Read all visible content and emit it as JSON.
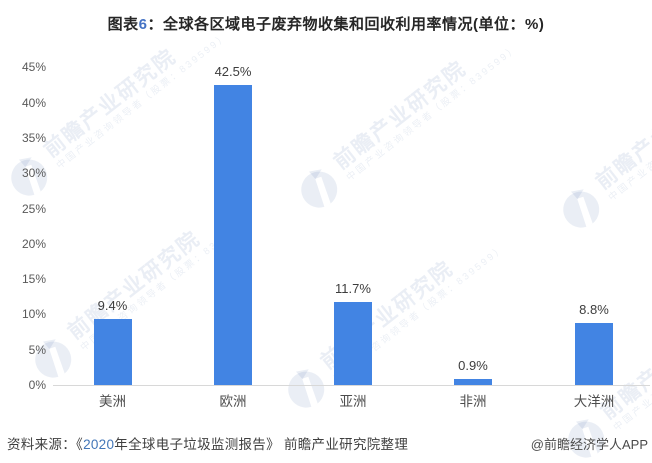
{
  "title": {
    "prefix": "图表",
    "figure_no": "6",
    "rest": "：全球各区域电子废弃物收集和回收利用率情况(单位：%)"
  },
  "chart_data": {
    "type": "bar",
    "title": "全球各区域电子废弃物收集和回收利用率情况",
    "unit": "%",
    "categories": [
      "美洲",
      "欧洲",
      "亚洲",
      "非洲",
      "大洋洲"
    ],
    "values": [
      9.4,
      42.5,
      11.7,
      0.9,
      8.8
    ],
    "value_labels": [
      "9.4%",
      "42.5%",
      "11.7%",
      "0.9%",
      "8.8%"
    ],
    "xlabel": "",
    "ylabel": "",
    "ylim": [
      0,
      45
    ],
    "ytick_step": 5,
    "ytick_labels": [
      "0%",
      "5%",
      "10%",
      "15%",
      "20%",
      "25%",
      "30%",
      "35%",
      "40%",
      "45%"
    ],
    "grid": false,
    "legend": null,
    "bar_color": "#4284E3"
  },
  "source": {
    "prefix": "资料来源：《",
    "year": "2020",
    "rest": "年全球电子垃圾监测报告》 前瞻产业研究院整理"
  },
  "credit": "@前瞻经济学人APP",
  "watermark": {
    "brand": "前瞻产业研究院",
    "tagline": "中国产业咨询领导者（股票：839599）"
  },
  "colors": {
    "bar": "#4284E3",
    "accent_number": "#4472C4",
    "accent_year": "#4276B8",
    "axis_line": "#D8D8D8",
    "title_text": "#262626",
    "tick_text": "#595959",
    "watermark_tint": "rgba(60,100,160,0.11)"
  }
}
